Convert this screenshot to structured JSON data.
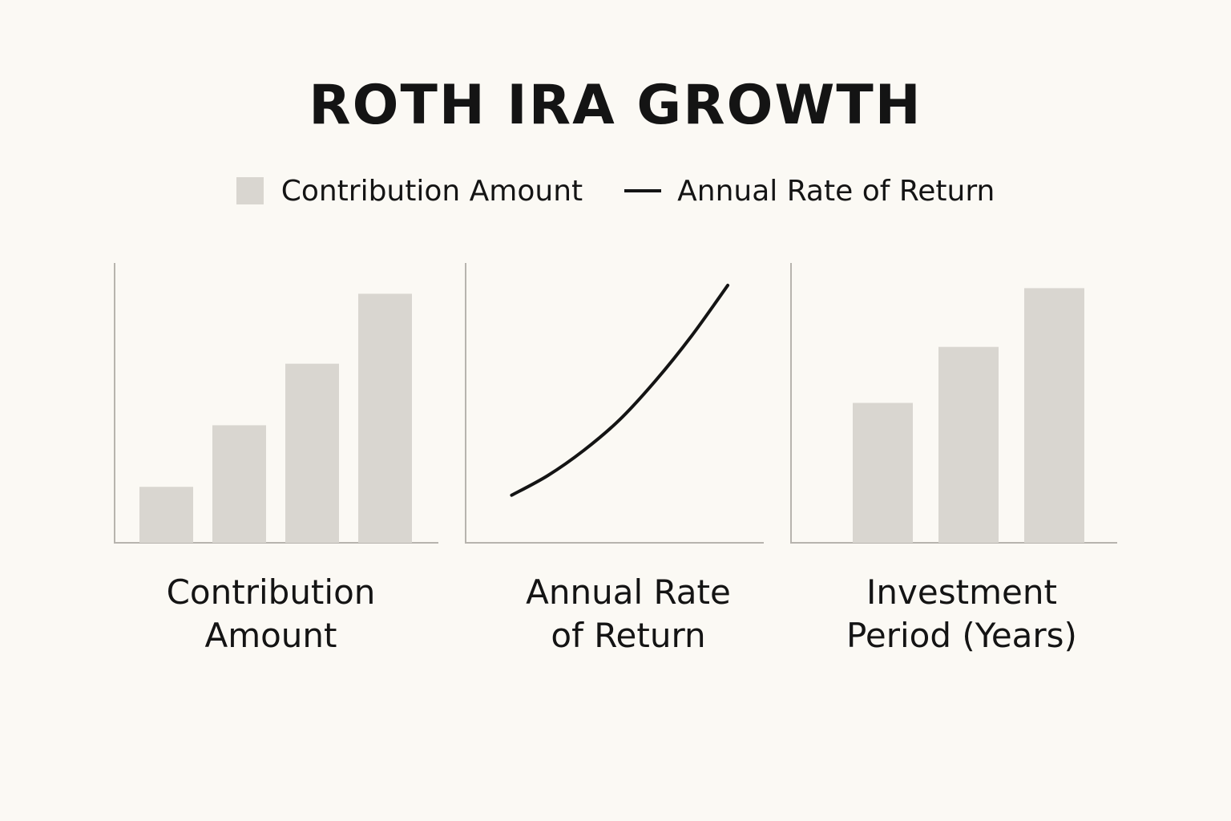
{
  "title": "ROTH IRA GROWTH",
  "legend": [
    {
      "label": "Contribution Amount",
      "kind": "bar",
      "color": "#d9d6d0"
    },
    {
      "label": "Annual Rate of Return",
      "kind": "line",
      "color": "#141414"
    }
  ],
  "chart_data": [
    {
      "type": "bar",
      "xlabel": "Contribution\nAmount",
      "values": [
        20,
        42,
        64,
        89
      ],
      "ylim": [
        0,
        100
      ],
      "grid": false,
      "color": "#d9d6d0"
    },
    {
      "type": "line",
      "xlabel": "Annual Rate\nof Return",
      "x": [
        0,
        1,
        2,
        3,
        4,
        5,
        6
      ],
      "y": [
        17,
        24,
        33,
        44,
        58,
        74,
        92
      ],
      "xlim": [
        -1.3,
        7.0
      ],
      "ylim": [
        0,
        100
      ],
      "grid": false,
      "color": "#141414"
    },
    {
      "type": "bar",
      "xlabel": "Investment\nPeriod (Years)",
      "values": [
        50,
        70,
        91
      ],
      "ylim": [
        0,
        100
      ],
      "grid": false,
      "color": "#d9d6d0"
    }
  ]
}
